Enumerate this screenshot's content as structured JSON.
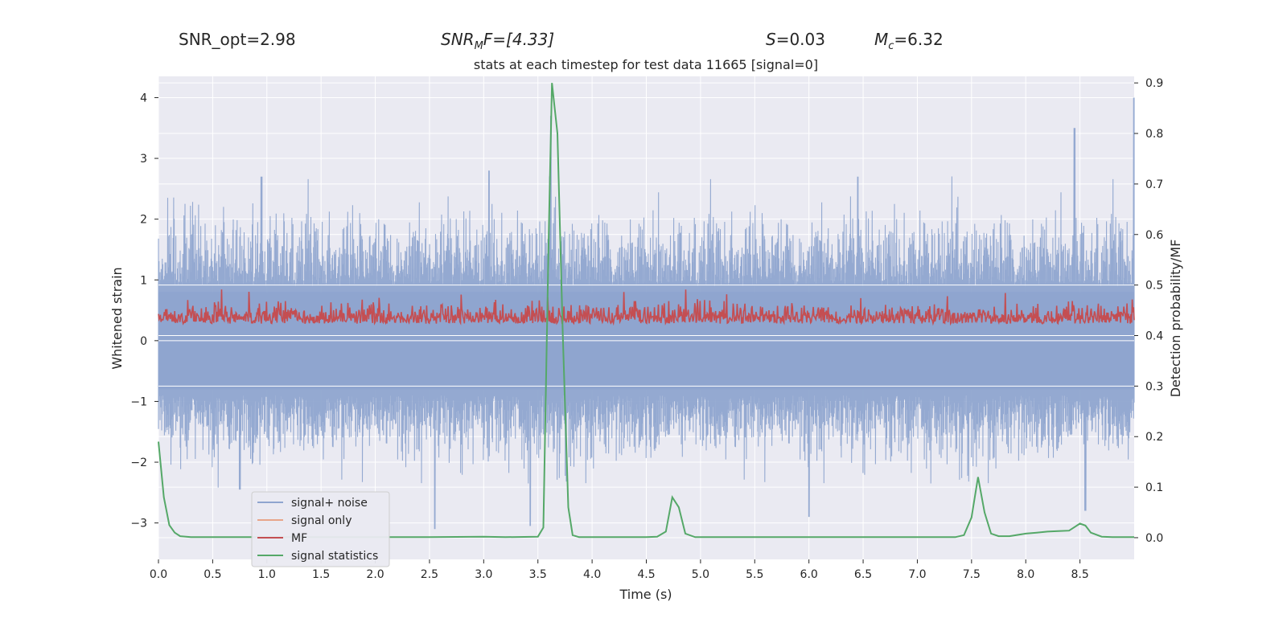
{
  "header": {
    "snr_opt": "SNR_opt=2.98",
    "snr_mf_main": "SNR",
    "snr_mf_sub": "M",
    "snr_mf_rest": "F=[4.33]",
    "s_label": "S",
    "s_value": "=0.03",
    "mc_label": "M",
    "mc_sub": "c",
    "mc_value": "=6.32"
  },
  "chart_data": {
    "type": "line",
    "title": "stats at each timestep for test data 11665 [signal=0]",
    "xlabel": "Time (s)",
    "ylabel": "Whitened strain",
    "ylabel_right": "Detection probability/MF",
    "xlim": [
      0.0,
      9.0
    ],
    "ylim": [
      -3.6,
      4.35
    ],
    "ylim_right": [
      -0.043,
      0.913
    ],
    "x_ticks": [
      "0.0",
      "0.5",
      "1.0",
      "1.5",
      "2.0",
      "2.5",
      "3.0",
      "3.5",
      "4.0",
      "4.5",
      "5.0",
      "5.5",
      "6.0",
      "6.5",
      "7.0",
      "7.5",
      "8.0",
      "8.5"
    ],
    "y_ticks": [
      "4",
      "3",
      "2",
      "1",
      "0",
      "−1",
      "−2",
      "−3"
    ],
    "y_right_ticks": [
      "0.9",
      "0.8",
      "0.7",
      "0.6",
      "0.5",
      "0.4",
      "0.3",
      "0.2",
      "0.1",
      "0.0"
    ],
    "legend": [
      "signal+ noise",
      "signal only",
      "MF",
      "signal statistics"
    ],
    "colors": {
      "signal_noise": "#8fa5cf",
      "signal_only": "#e8a58a",
      "mf": "#c44e52",
      "signal_statistics": "#55a868",
      "axes_bg": "#eaeaf2",
      "grid": "#ffffff"
    },
    "series": [
      {
        "name": "signal statistics",
        "axis": "right",
        "x": [
          0.0,
          0.05,
          0.1,
          0.15,
          0.2,
          0.3,
          0.5,
          1.0,
          1.5,
          2.0,
          2.5,
          3.0,
          3.2,
          3.5,
          3.55,
          3.6,
          3.63,
          3.68,
          3.73,
          3.78,
          3.82,
          3.88,
          4.0,
          4.5,
          4.6,
          4.68,
          4.74,
          4.8,
          4.86,
          4.95,
          5.0,
          5.5,
          6.0,
          6.5,
          7.0,
          7.35,
          7.43,
          7.5,
          7.56,
          7.62,
          7.68,
          7.75,
          7.85,
          8.0,
          8.1,
          8.2,
          8.3,
          8.4,
          8.5,
          8.55,
          8.6,
          8.7,
          8.8,
          9.0
        ],
        "y": [
          0.19,
          0.08,
          0.025,
          0.01,
          0.003,
          0.001,
          0.001,
          0.001,
          0.001,
          0.001,
          0.001,
          0.002,
          0.001,
          0.002,
          0.02,
          0.6,
          0.9,
          0.8,
          0.4,
          0.06,
          0.005,
          0.001,
          0.001,
          0.001,
          0.002,
          0.012,
          0.08,
          0.06,
          0.008,
          0.001,
          0.001,
          0.001,
          0.001,
          0.001,
          0.001,
          0.001,
          0.005,
          0.04,
          0.12,
          0.05,
          0.008,
          0.003,
          0.003,
          0.008,
          0.01,
          0.012,
          0.013,
          0.014,
          0.028,
          0.024,
          0.01,
          0.002,
          0.001,
          0.001
        ]
      },
      {
        "name": "signal+ noise",
        "axis": "left",
        "envelope_spikes_up": [
          [
            3.62,
            3.7
          ],
          [
            8.45,
            3.5
          ],
          [
            9.0,
            4.0
          ],
          [
            0.95,
            2.7
          ],
          [
            3.05,
            2.8
          ],
          [
            6.45,
            2.7
          ]
        ],
        "envelope_spikes_down": [
          [
            2.55,
            -3.1
          ],
          [
            3.43,
            -3.05
          ],
          [
            6.0,
            -2.9
          ],
          [
            8.55,
            -2.8
          ],
          [
            0.75,
            -2.45
          ]
        ]
      },
      {
        "name": "MF",
        "axis": "left",
        "range": [
          0.03,
          1.0
        ]
      }
    ]
  }
}
